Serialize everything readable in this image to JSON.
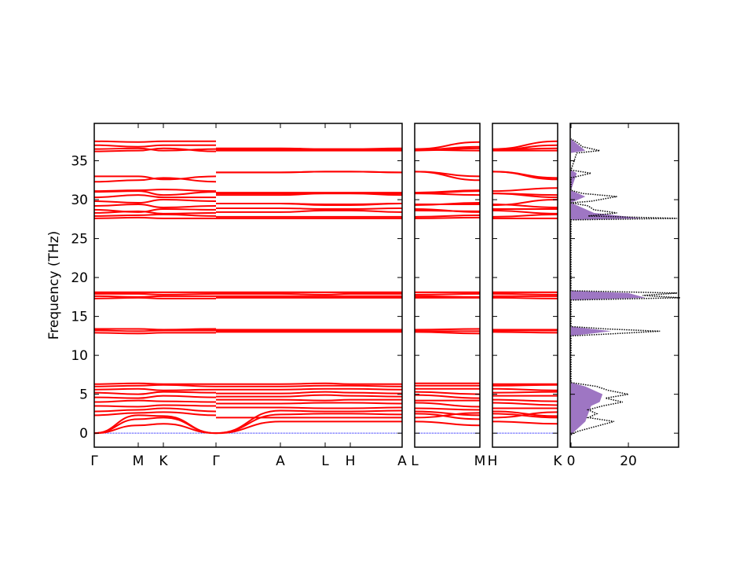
{
  "chart_data": {
    "type": "line",
    "title": "",
    "ylabel": "Frequency (THz)",
    "ylim": [
      -1.8,
      39.8
    ],
    "yticks": [
      0,
      5,
      10,
      15,
      20,
      25,
      30,
      35
    ],
    "band_color": "#ff0000",
    "zero_line_color": "#0000ff",
    "panels": [
      {
        "labels": [
          "Γ",
          "M",
          "K",
          "Γ",
          "A",
          "L",
          "H",
          "A"
        ],
        "idx": [
          0,
          1,
          2,
          3,
          4,
          5,
          6,
          7
        ]
      },
      {
        "labels": [
          "L",
          "M"
        ],
        "idx": [
          8,
          9
        ]
      },
      {
        "labels": [
          "H",
          "K"
        ],
        "idx": [
          10,
          11
        ]
      }
    ],
    "panel1_break_after_index": 3,
    "bands": [
      [
        0,
        1.0,
        1.2,
        0,
        1.5,
        1.5,
        1.5,
        1.5,
        1.5,
        1.0,
        1.5,
        1.2
      ],
      [
        0,
        1.8,
        2.0,
        0,
        2.4,
        2.5,
        2.5,
        2.4,
        2.5,
        1.8,
        2.5,
        2.0
      ],
      [
        0,
        2.3,
        2.2,
        0,
        2.9,
        2.8,
        2.8,
        2.9,
        2.8,
        2.3,
        2.8,
        2.2
      ],
      [
        2.3,
        2.6,
        2.7,
        2.3,
        2.0,
        2.0,
        2.0,
        2.0,
        2.0,
        2.6,
        2.0,
        2.7
      ],
      [
        2.8,
        3.0,
        3.2,
        2.8,
        3.3,
        3.2,
        3.2,
        3.3,
        3.2,
        3.0,
        3.2,
        3.2
      ],
      [
        3.5,
        3.4,
        3.6,
        3.5,
        3.8,
        3.9,
        3.9,
        3.8,
        3.9,
        3.4,
        3.9,
        3.6
      ],
      [
        4.0,
        4.2,
        4.1,
        4.0,
        4.3,
        4.2,
        4.3,
        4.3,
        4.2,
        4.2,
        4.3,
        4.1
      ],
      [
        4.6,
        4.5,
        4.8,
        4.6,
        4.7,
        4.9,
        4.8,
        4.7,
        4.9,
        4.5,
        4.8,
        4.8
      ],
      [
        5.2,
        5.0,
        5.3,
        5.2,
        5.1,
        5.3,
        5.2,
        5.1,
        5.3,
        5.0,
        5.2,
        5.3
      ],
      [
        5.6,
        5.7,
        5.5,
        5.6,
        5.6,
        5.7,
        5.7,
        5.6,
        5.7,
        5.7,
        5.7,
        5.5
      ],
      [
        6.0,
        6.1,
        6.2,
        6.0,
        6.0,
        6.1,
        6.1,
        6.0,
        6.1,
        6.1,
        6.1,
        6.2
      ],
      [
        6.3,
        6.4,
        6.3,
        6.3,
        6.3,
        6.4,
        6.3,
        6.3,
        6.4,
        6.4,
        6.3,
        6.3
      ],
      [
        12.9,
        12.8,
        12.9,
        12.9,
        13.0,
        13.0,
        13.0,
        13.0,
        13.0,
        12.8,
        13.0,
        12.9
      ],
      [
        13.2,
        13.1,
        13.2,
        13.2,
        13.2,
        13.1,
        13.2,
        13.2,
        13.1,
        13.1,
        13.2,
        13.2
      ],
      [
        13.4,
        13.4,
        13.3,
        13.4,
        13.3,
        13.3,
        13.3,
        13.3,
        13.3,
        13.4,
        13.3,
        13.3
      ],
      [
        17.3,
        17.4,
        17.3,
        17.3,
        17.4,
        17.4,
        17.4,
        17.4,
        17.4,
        17.4,
        17.4,
        17.3
      ],
      [
        17.6,
        17.5,
        17.6,
        17.6,
        17.6,
        17.6,
        17.6,
        17.6,
        17.6,
        17.5,
        17.6,
        17.6
      ],
      [
        17.9,
        17.9,
        17.8,
        17.9,
        17.9,
        17.8,
        17.9,
        17.9,
        17.8,
        17.9,
        17.9,
        17.8
      ],
      [
        18.1,
        18.1,
        18.1,
        18.1,
        18.1,
        18.1,
        18.1,
        18.1,
        18.1,
        18.1,
        18.1,
        18.1
      ],
      [
        27.6,
        27.7,
        27.6,
        27.6,
        27.6,
        27.6,
        27.6,
        27.6,
        27.6,
        27.7,
        27.6,
        27.6
      ],
      [
        27.9,
        28.0,
        28.1,
        27.9,
        27.8,
        27.8,
        27.8,
        27.8,
        27.8,
        28.0,
        27.8,
        28.1
      ],
      [
        28.3,
        28.5,
        28.2,
        28.3,
        28.4,
        28.6,
        28.6,
        28.4,
        28.6,
        28.5,
        28.6,
        28.2
      ],
      [
        28.7,
        28.4,
        28.8,
        28.7,
        28.9,
        28.8,
        28.8,
        28.9,
        28.8,
        28.4,
        28.8,
        28.8
      ],
      [
        29.2,
        29.4,
        29.0,
        29.2,
        29.5,
        29.4,
        29.4,
        29.5,
        29.4,
        29.4,
        29.4,
        29.0
      ],
      [
        29.8,
        29.6,
        30.0,
        29.8,
        29.5,
        29.3,
        29.3,
        29.5,
        29.3,
        29.6,
        29.3,
        30.0
      ],
      [
        30.3,
        30.6,
        30.3,
        30.3,
        30.6,
        30.8,
        30.8,
        30.6,
        30.8,
        30.6,
        30.8,
        30.3
      ],
      [
        31.0,
        31.1,
        30.6,
        31.0,
        30.8,
        30.8,
        30.8,
        30.8,
        30.8,
        31.1,
        30.8,
        30.6
      ],
      [
        31.1,
        31.2,
        31.3,
        31.1,
        30.9,
        30.9,
        30.9,
        30.9,
        30.9,
        31.2,
        31.1,
        31.5
      ],
      [
        32.3,
        32.5,
        32.8,
        32.3,
        33.5,
        33.6,
        33.6,
        33.5,
        33.6,
        32.5,
        33.6,
        32.8
      ],
      [
        33.0,
        33.0,
        32.6,
        33.0,
        33.5,
        33.6,
        33.6,
        33.5,
        33.6,
        33.0,
        33.6,
        32.6
      ],
      [
        36.2,
        36.3,
        36.6,
        36.2,
        36.5,
        36.4,
        36.4,
        36.5,
        36.4,
        36.3,
        36.4,
        36.6
      ],
      [
        36.5,
        36.6,
        36.3,
        36.5,
        36.3,
        36.3,
        36.3,
        36.3,
        36.3,
        36.6,
        36.3,
        36.3
      ],
      [
        37.0,
        36.8,
        37.0,
        37.0,
        36.4,
        36.4,
        36.4,
        36.4,
        36.4,
        36.8,
        36.4,
        37.0
      ],
      [
        37.5,
        37.4,
        37.5,
        37.5,
        36.6,
        36.5,
        36.5,
        36.6,
        36.5,
        37.4,
        36.5,
        37.5
      ]
    ],
    "dos": {
      "xlim": [
        0,
        37.5
      ],
      "xticks": [
        0,
        20
      ],
      "total_color": "#000000",
      "partial_colors": [
        "#9467bd",
        "#d62728",
        "#2ca02c",
        "#ff7f0e",
        "#1f77b4"
      ],
      "total": [
        [
          -0.2,
          0
        ],
        [
          0.2,
          2
        ],
        [
          1,
          10
        ],
        [
          1.5,
          15
        ],
        [
          2,
          6
        ],
        [
          2.5,
          9
        ],
        [
          3,
          6
        ],
        [
          3.5,
          11
        ],
        [
          4,
          18
        ],
        [
          4.5,
          12
        ],
        [
          5,
          20
        ],
        [
          5.5,
          13
        ],
        [
          6,
          9
        ],
        [
          6.5,
          0
        ],
        [
          12.5,
          0
        ],
        [
          12.8,
          16
        ],
        [
          13.1,
          31
        ],
        [
          13.4,
          12
        ],
        [
          13.7,
          0
        ],
        [
          17.1,
          0
        ],
        [
          17.4,
          38
        ],
        [
          17.7,
          25
        ],
        [
          18.0,
          37
        ],
        [
          18.3,
          0
        ],
        [
          27.4,
          0
        ],
        [
          27.6,
          37
        ],
        [
          27.9,
          6
        ],
        [
          28.3,
          16
        ],
        [
          28.7,
          8
        ],
        [
          29.2,
          6
        ],
        [
          29.6,
          0
        ],
        [
          29.8,
          7
        ],
        [
          30.4,
          16
        ],
        [
          30.8,
          4
        ],
        [
          31.2,
          0
        ],
        [
          32.8,
          0
        ],
        [
          33.4,
          7
        ],
        [
          33.8,
          0
        ],
        [
          36.0,
          2
        ],
        [
          36.3,
          10
        ],
        [
          36.8,
          4
        ],
        [
          37.4,
          2
        ],
        [
          37.8,
          0
        ]
      ],
      "partial": [
        [
          -0.2,
          0
        ],
        [
          1.5,
          5
        ],
        [
          2.5,
          6
        ],
        [
          3.5,
          7
        ],
        [
          4,
          10
        ],
        [
          5,
          11
        ],
        [
          6,
          5
        ],
        [
          6.5,
          0
        ],
        [
          12.5,
          0
        ],
        [
          13.1,
          14
        ],
        [
          13.7,
          0
        ],
        [
          17.1,
          0
        ],
        [
          17.4,
          26
        ],
        [
          18.0,
          20
        ],
        [
          18.3,
          0
        ],
        [
          27.4,
          0
        ],
        [
          27.6,
          25
        ],
        [
          28.3,
          8
        ],
        [
          29.6,
          0
        ],
        [
          30.4,
          5
        ],
        [
          31.2,
          0
        ],
        [
          33.4,
          2
        ],
        [
          33.8,
          0
        ],
        [
          36.0,
          0
        ],
        [
          36.3,
          5
        ],
        [
          37.8,
          0
        ]
      ]
    }
  }
}
